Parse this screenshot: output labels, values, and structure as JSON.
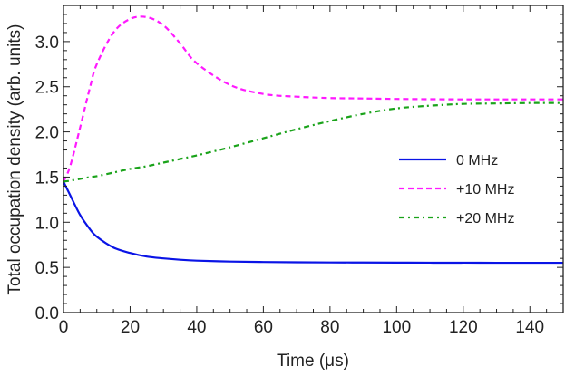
{
  "chart_data": {
    "type": "line",
    "title": "",
    "xlabel": "Time (μs)",
    "ylabel": "Total occupation density (arb. units)",
    "xlim": [
      0,
      150
    ],
    "ylim": [
      0,
      3.4
    ],
    "xticks": [
      0,
      20,
      40,
      60,
      80,
      100,
      120,
      140
    ],
    "xtick_labels": [
      "0",
      "20",
      "40",
      "60",
      "80",
      "100",
      "120",
      "140"
    ],
    "yticks": [
      0.0,
      0.5,
      1.0,
      1.5,
      2.0,
      2.5,
      3.0
    ],
    "ytick_labels": [
      "0.0",
      "0.5",
      "1.0",
      "1.5",
      "2.0",
      "2.5",
      "3.0"
    ],
    "grid": false,
    "legend_position": "center-right",
    "x": [
      0,
      2,
      5,
      8,
      10,
      15,
      20,
      25,
      30,
      35,
      40,
      50,
      60,
      70,
      80,
      90,
      100,
      110,
      120,
      130,
      140,
      150
    ],
    "series": [
      {
        "name": "0 MHz",
        "color": "#0a14e6",
        "style": "solid",
        "values": [
          1.45,
          1.3,
          1.08,
          0.92,
          0.84,
          0.72,
          0.66,
          0.62,
          0.6,
          0.585,
          0.575,
          0.565,
          0.56,
          0.557,
          0.555,
          0.554,
          0.553,
          0.552,
          0.552,
          0.551,
          0.551,
          0.551
        ]
      },
      {
        "name": "+10 MHz",
        "color": "#ff1aff",
        "style": "dashed",
        "values": [
          1.45,
          1.62,
          2.05,
          2.5,
          2.75,
          3.1,
          3.25,
          3.27,
          3.18,
          2.98,
          2.76,
          2.52,
          2.42,
          2.39,
          2.375,
          2.37,
          2.365,
          2.362,
          2.36,
          2.36,
          2.36,
          2.36
        ]
      },
      {
        "name": "+20 MHz",
        "color": "#1aa31a",
        "style": "dashdot",
        "values": [
          1.45,
          1.46,
          1.48,
          1.5,
          1.51,
          1.55,
          1.59,
          1.62,
          1.66,
          1.7,
          1.74,
          1.83,
          1.93,
          2.03,
          2.12,
          2.2,
          2.26,
          2.29,
          2.31,
          2.315,
          2.32,
          2.32
        ]
      }
    ]
  },
  "legend": {
    "items": [
      {
        "label": "0 MHz"
      },
      {
        "label": "+10 MHz"
      },
      {
        "label": "+20 MHz"
      }
    ]
  }
}
